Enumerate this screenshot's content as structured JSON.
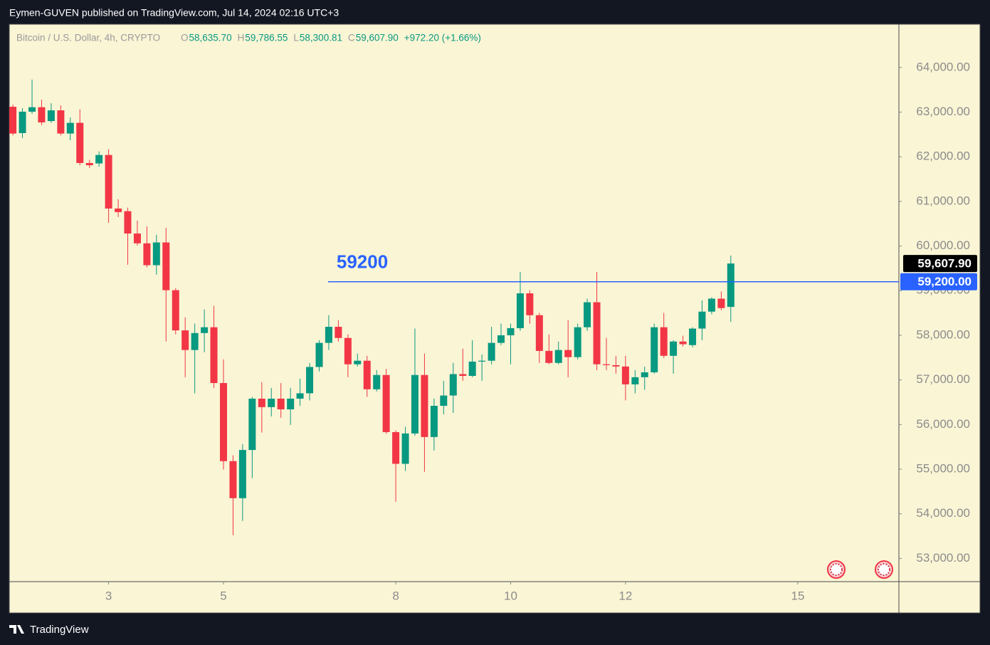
{
  "header": {
    "text": "Eymen-GUVEN published on TradingView.com, Jul 14, 2024 02:16 UTC+3"
  },
  "footer": {
    "logo": "TradingView"
  },
  "chart_data": {
    "type": "candlestick",
    "symbol": "Bitcoin / U.S. Dollar, 4h, CRYPTO",
    "ohlc_legend": [
      {
        "key": "O",
        "text": "58,635.70"
      },
      {
        "key": "H",
        "text": "59,786.55"
      },
      {
        "key": "L",
        "text": "58,300.81"
      },
      {
        "key": "C",
        "text": "59,607.90"
      }
    ],
    "change": "+972.20 (+1.66%)",
    "up_color": "#089981",
    "down_color": "#f23645",
    "background": "#faf5d5",
    "x": [
      1.333,
      1.5,
      1.667,
      1.833,
      2,
      2.167,
      2.333,
      2.5,
      2.667,
      2.833,
      3,
      3.167,
      3.333,
      3.5,
      3.667,
      3.833,
      4,
      4.167,
      4.333,
      4.5,
      4.667,
      4.833,
      5,
      5.167,
      5.333,
      5.5,
      5.667,
      5.833,
      6,
      6.167,
      6.333,
      6.5,
      6.667,
      6.833,
      7,
      7.167,
      7.333,
      7.5,
      7.667,
      7.833,
      8,
      8.167,
      8.333,
      8.5,
      8.667,
      8.833,
      9,
      9.167,
      9.333,
      9.5,
      9.667,
      9.833,
      10,
      10.167,
      10.333,
      10.5,
      10.667,
      10.833,
      11,
      11.167,
      11.333,
      11.5,
      11.667,
      11.833,
      12,
      12.167,
      12.333,
      12.5,
      12.667,
      12.833,
      13,
      13.167,
      13.333,
      13.5,
      13.667,
      13.833
    ],
    "open": [
      63120,
      62530,
      63010,
      63110,
      62800,
      63040,
      62520,
      62760,
      61860,
      61850,
      62040,
      60840,
      60780,
      60280,
      60060,
      59570,
      60080,
      59010,
      58110,
      57670,
      58050,
      58180,
      56930,
      55180,
      54350,
      55430,
      56580,
      56390,
      56580,
      56340,
      56580,
      56700,
      57290,
      57830,
      58190,
      57940,
      57350,
      57430,
      56790,
      57110,
      55830,
      55120,
      55800,
      57110,
      55720,
      56420,
      56650,
      57130,
      57090,
      57410,
      57430,
      57830,
      58000,
      58160,
      58940,
      58450,
      57650,
      57380,
      57670,
      57510,
      58180,
      58740,
      57350,
      57330,
      57300,
      56900,
      57060,
      57170,
      58180,
      57540,
      57860,
      57780,
      58150,
      58530,
      58820,
      58635.7
    ],
    "high": [
      63170,
      63090,
      63730,
      63280,
      63200,
      63150,
      62880,
      63060,
      61930,
      62120,
      62170,
      61050,
      60860,
      60570,
      60440,
      60250,
      60410,
      59060,
      58400,
      58260,
      58580,
      58660,
      57460,
      55310,
      55560,
      56620,
      56950,
      56820,
      56930,
      56820,
      57030,
      57380,
      57890,
      58450,
      58340,
      58020,
      57590,
      57540,
      57220,
      57250,
      55870,
      55950,
      58150,
      57590,
      56580,
      56980,
      57380,
      57700,
      57890,
      57570,
      58190,
      58260,
      58260,
      59420,
      59010,
      58500,
      58020,
      57860,
      58340,
      58260,
      58820,
      59420,
      57940,
      57540,
      57540,
      57220,
      57300,
      58260,
      58500,
      57890,
      57990,
      58180,
      58780,
      58850,
      58980,
      59786.55
    ],
    "low": [
      62480,
      62420,
      62960,
      62710,
      62760,
      62480,
      62370,
      61810,
      61750,
      61780,
      60520,
      60650,
      59580,
      60010,
      59520,
      59360,
      57860,
      58020,
      57060,
      56700,
      57620,
      56820,
      54990,
      53520,
      53840,
      54800,
      55820,
      56180,
      56150,
      55990,
      56420,
      56540,
      57190,
      57670,
      57860,
      57060,
      57300,
      56620,
      56740,
      55790,
      54270,
      54960,
      55750,
      54940,
      55420,
      56230,
      56260,
      56980,
      57060,
      56980,
      57350,
      57780,
      57350,
      58100,
      58260,
      57380,
      57350,
      57350,
      57060,
      57460,
      58100,
      57220,
      57220,
      57140,
      56540,
      56700,
      56780,
      57140,
      57490,
      57140,
      57750,
      57730,
      57890,
      58470,
      58560,
      58300.81
    ],
    "close": [
      62520,
      63010,
      63110,
      62770,
      63040,
      62520,
      62760,
      61860,
      61810,
      62040,
      60840,
      60760,
      60280,
      60060,
      59570,
      60080,
      59010,
      58110,
      57670,
      58050,
      58180,
      56930,
      55180,
      54350,
      55430,
      56580,
      56390,
      56580,
      56340,
      56580,
      56700,
      57290,
      57830,
      58190,
      57940,
      57350,
      57430,
      56790,
      57110,
      55830,
      55120,
      55800,
      57110,
      55720,
      56420,
      56650,
      57130,
      57090,
      57410,
      57430,
      57830,
      58000,
      58160,
      58940,
      58450,
      57650,
      57380,
      57670,
      57510,
      58180,
      58740,
      57350,
      57330,
      57300,
      56900,
      57060,
      57170,
      58180,
      57540,
      57860,
      57800,
      58150,
      58530,
      58820,
      58610,
      59607.9
    ],
    "xlim": [
      1.27,
      16.76
    ],
    "xticks": [
      3,
      5,
      8,
      10,
      12,
      15
    ],
    "ylim": [
      52480,
      64970
    ],
    "yticks": [
      {
        "value": 53000,
        "label": "53,000.00"
      },
      {
        "value": 54000,
        "label": "54,000.00"
      },
      {
        "value": 55000,
        "label": "55,000.00"
      },
      {
        "value": 56000,
        "label": "56,000.00"
      },
      {
        "value": 57000,
        "label": "57,000.00"
      },
      {
        "value": 58000,
        "label": "58,000.00"
      },
      {
        "value": 59000,
        "label": "59,000.00"
      },
      {
        "value": 60000,
        "label": "60,000.00"
      },
      {
        "value": 61000,
        "label": "61,000.00"
      },
      {
        "value": 62000,
        "label": "62,000.00"
      },
      {
        "value": 63000,
        "label": "63,000.00"
      },
      {
        "value": 64000,
        "label": "64,000.00"
      }
    ],
    "last_price": {
      "value": 59607.9,
      "label": "59,607.90"
    },
    "hline": {
      "value": 59200,
      "start_x": 6.82,
      "label": "59200",
      "axis_label": "59,200.00",
      "color": "#2962ff"
    }
  }
}
